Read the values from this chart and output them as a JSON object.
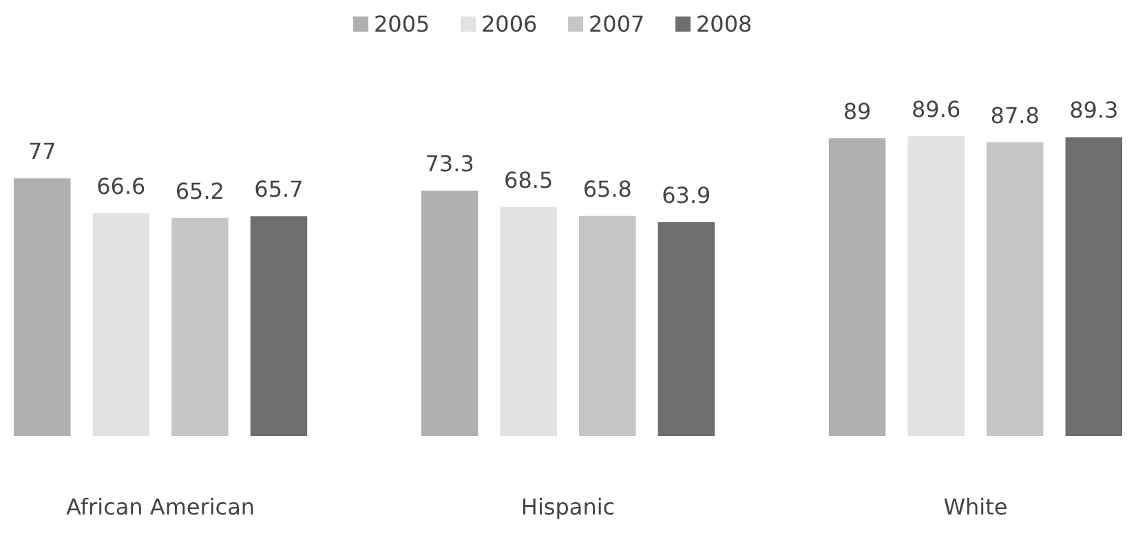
{
  "chart_data": {
    "type": "bar",
    "categories": [
      "African American",
      "Hispanic",
      "White"
    ],
    "series": [
      {
        "name": "2005",
        "color": "#b0b0b0",
        "values": [
          77,
          73.3,
          89
        ]
      },
      {
        "name": "2006",
        "color": "#e2e2e2",
        "values": [
          66.6,
          68.5,
          89.6
        ]
      },
      {
        "name": "2007",
        "color": "#c6c6c6",
        "values": [
          65.2,
          65.8,
          87.8
        ]
      },
      {
        "name": "2008",
        "color": "#6e6e6e",
        "values": [
          65.7,
          63.9,
          89.3
        ]
      }
    ],
    "data_labels": true,
    "legend": "top"
  }
}
